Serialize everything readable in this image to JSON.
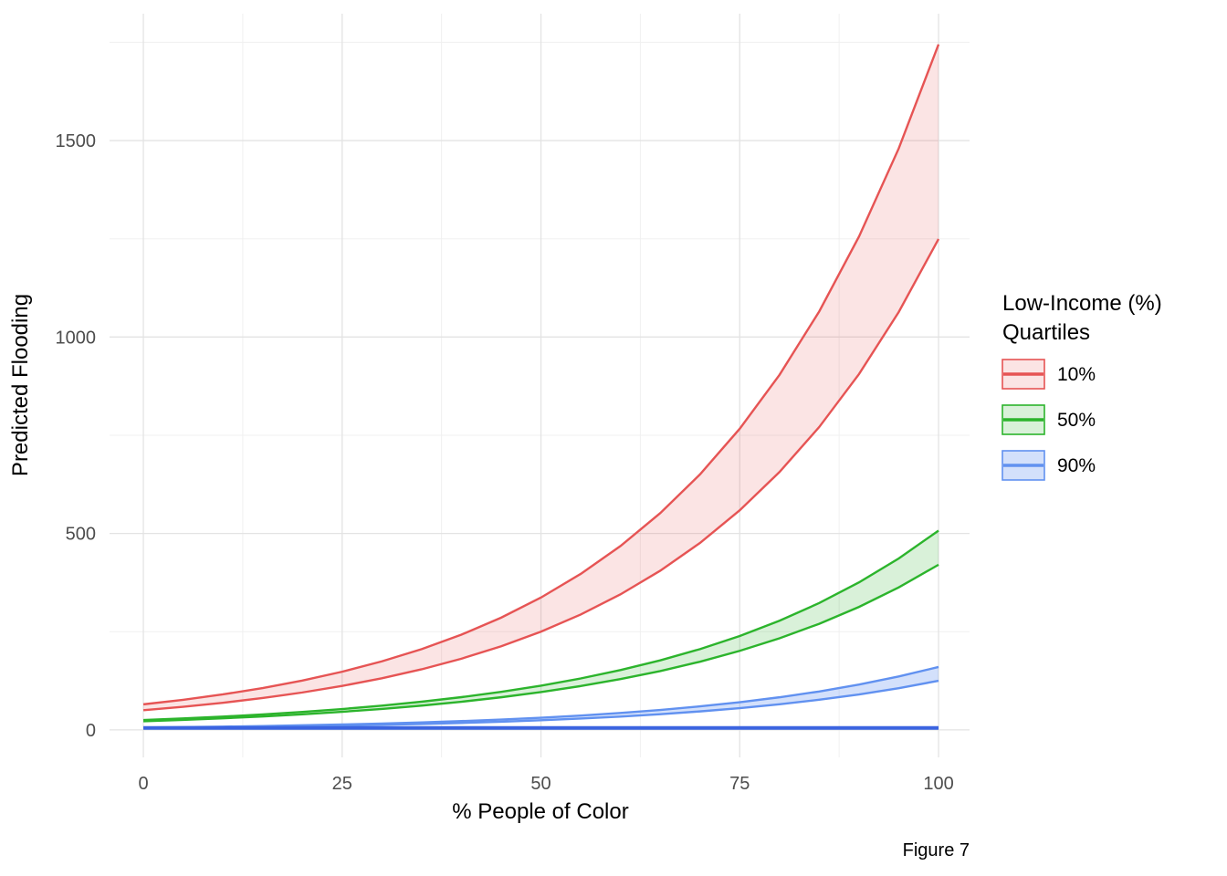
{
  "figure": {
    "caption": "Figure 7"
  },
  "axes": {
    "x_title": "% People of Color",
    "y_title": "Predicted Flooding",
    "x_ticks": [
      0,
      25,
      50,
      75,
      100
    ],
    "y_ticks": [
      0,
      500,
      1000,
      1500
    ],
    "x_minor": [
      12.5,
      37.5,
      62.5,
      87.5
    ],
    "y_minor": [
      250,
      750,
      1250,
      1750
    ]
  },
  "legend": {
    "title_line1": "Low-Income (%)",
    "title_line2": "Quartiles",
    "items": [
      {
        "label": "10%"
      },
      {
        "label": "50%"
      },
      {
        "label": "90%"
      }
    ]
  },
  "colors": {
    "grid_major": "#e3e3e3",
    "grid_minor": "#f0f0f0",
    "tick_label": "#4d4d4d",
    "text": "#000000"
  },
  "chart_data": {
    "type": "area",
    "title": "",
    "xlabel": "% People of Color",
    "ylabel": "Predicted Flooding",
    "xlim": [
      -4.25,
      103.9
    ],
    "ylim": [
      -70,
      1823
    ],
    "grid": true,
    "legend_position": "right",
    "x": [
      0,
      5,
      10,
      15,
      20,
      25,
      30,
      35,
      40,
      45,
      50,
      55,
      60,
      65,
      70,
      75,
      80,
      85,
      90,
      95,
      100
    ],
    "series": [
      {
        "name": "10%",
        "color": "#e65454",
        "fill": "rgba(230,84,84,0.16)",
        "lower": [
          50,
          58.7,
          69,
          81,
          95.2,
          111.8,
          131.3,
          154.2,
          181.2,
          212.8,
          250,
          293.6,
          344.9,
          405.1,
          475.8,
          558.9,
          656.4,
          771,
          905.7,
          1063.8,
          1249.5
        ],
        "upper": [
          65,
          76.6,
          90.3,
          106.5,
          125.5,
          148,
          174.4,
          205.6,
          242.4,
          285.7,
          336.8,
          397,
          468,
          551.7,
          650.3,
          766.6,
          903.7,
          1065.3,
          1255.7,
          1480.2,
          1744.9
        ]
      },
      {
        "name": "50%",
        "color": "#2cb42c",
        "fill": "rgba(44,180,44,0.18)",
        "lower": [
          22,
          25.5,
          29.5,
          34.2,
          39.7,
          46,
          53.3,
          61.8,
          71.6,
          83,
          96.2,
          111.5,
          129.2,
          149.7,
          173.5,
          201.1,
          233,
          270.1,
          313,
          362.7,
          420.4
        ],
        "upper": [
          25,
          29.1,
          33.8,
          39.3,
          45.6,
          53,
          61.7,
          71.7,
          83.3,
          96.9,
          112.6,
          130.9,
          152.2,
          176.9,
          205.6,
          239,
          277.8,
          322.9,
          375.4,
          436.4,
          507.2
        ]
      },
      {
        "name": "90%",
        "color": "#6191f0",
        "fill": "rgba(97,145,240,0.28)",
        "lower": [
          4.8,
          5.7,
          6.7,
          7.8,
          9.2,
          10.8,
          12.8,
          15,
          17.7,
          20.8,
          24.5,
          28.8,
          33.9,
          39.9,
          47,
          55.3,
          65.1,
          76.7,
          90.2,
          106.2,
          125
        ],
        "upper": [
          6,
          7.1,
          8.3,
          9.8,
          11.6,
          13.6,
          16.1,
          18.9,
          22.3,
          26.3,
          31,
          36.5,
          43.1,
          50.7,
          59.8,
          70.5,
          83,
          97.8,
          115.3,
          135.9,
          160.1
        ]
      }
    ],
    "flat_line": {
      "y": 5,
      "x_start": 0,
      "x_end": 100,
      "color": "#3b64e0",
      "width": 4
    }
  }
}
